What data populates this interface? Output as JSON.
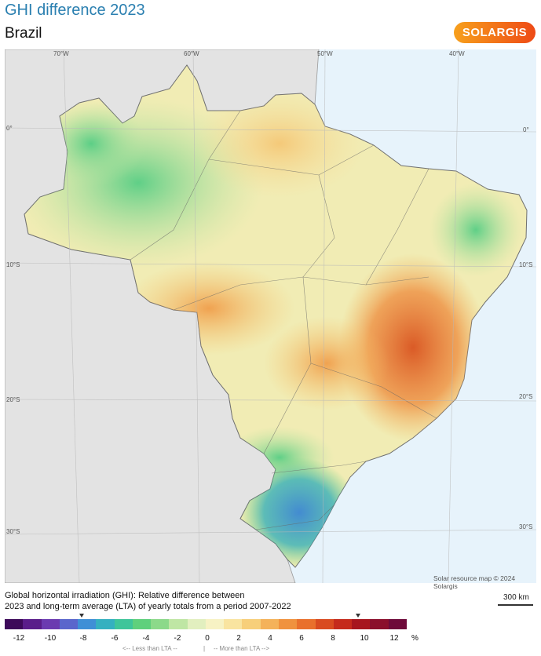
{
  "header": {
    "title": "GHI difference 2023",
    "subtitle": "Brazil",
    "logo": "SOLARGIS"
  },
  "map": {
    "lon_labels": [
      "70°W",
      "60°W",
      "50°W",
      "40°W"
    ],
    "lat_labels_left": [
      "0°",
      "10°S",
      "20°S",
      "30°S"
    ],
    "lat_labels_right": [
      "0°",
      "10°S",
      "20°S",
      "30°S"
    ],
    "credit": "Solar resource map © 2024 Solargis",
    "scale": "300 km"
  },
  "caption": {
    "line1": "Global horizontal irradiation (GHI): Relative difference between",
    "line2": "2023 and long-term average (LTA) of yearly totals from a period 2007-2022"
  },
  "legend": {
    "ticks": [
      "-12",
      "-10",
      "-8",
      "-6",
      "-4",
      "-2",
      "0",
      "2",
      "4",
      "6",
      "8",
      "10",
      "12"
    ],
    "unit": "%",
    "less_note": "<-- Less than LTA --",
    "divider": "|",
    "more_note": "-- More than LTA -->",
    "colors": [
      "#3d0a5a",
      "#5a1d8a",
      "#6b3ab0",
      "#5a66cc",
      "#3f8fd6",
      "#35b0c0",
      "#3fc59a",
      "#5fd07c",
      "#8cd98a",
      "#bfe6a4",
      "#e2efbf",
      "#f7f2c4",
      "#f9e4a0",
      "#f7cf7a",
      "#f4b25a",
      "#f0923e",
      "#e9702c",
      "#d94b20",
      "#c52a1c",
      "#a7161e",
      "#8b0f2c",
      "#6e0a3a"
    ],
    "markers": [
      "-8",
      "10"
    ]
  }
}
